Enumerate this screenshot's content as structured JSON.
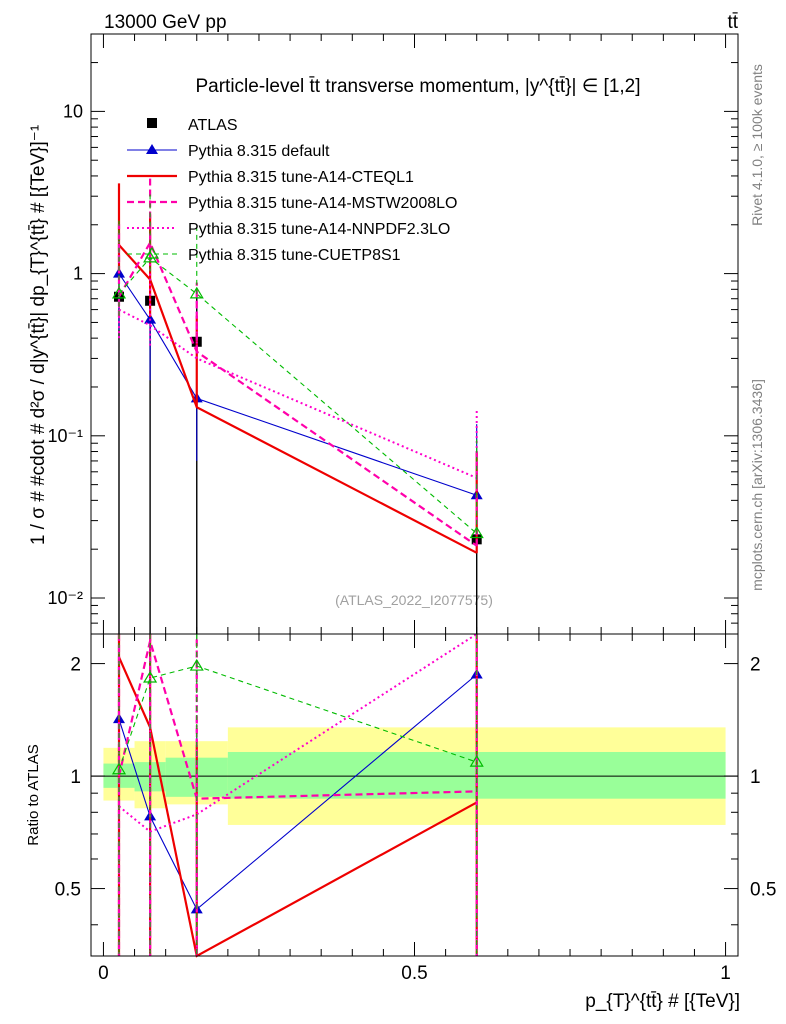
{
  "header": {
    "left": "13000 GeV pp",
    "right": "tt̄"
  },
  "side_labels": {
    "rivet": "Rivet 4.1.0, ≥ 100k events",
    "mcplots": "mcplots.cern.ch [arXiv:1306.3436]"
  },
  "chart_data": [
    {
      "type": "line",
      "panel": "main",
      "title": "Particle-level t̄t transverse momentum, |y^{tt̄}| ∈ [1,2]",
      "ylabel": "1 / σ # #cdot # d²σ / d|y^{tt̄}| dp_{T}^{tt̄} # [{TeV}]⁻¹",
      "yscale": "log",
      "ylim": [
        0.006,
        30
      ],
      "xlim": [
        -0.02,
        1.02
      ],
      "y_tick_labels": [
        "10⁻²",
        "10⁻¹",
        "1",
        "10"
      ],
      "watermark": "(ATLAS_2022_I2077575)",
      "legend_position": "top-left",
      "x": [
        0.025,
        0.075,
        0.15,
        0.6
      ],
      "series": [
        {
          "name": "ATLAS",
          "color": "#000000",
          "style": "data",
          "values": [
            0.72,
            0.68,
            0.38,
            0.023
          ],
          "err_low": [
            0.72,
            0.68,
            0.38,
            0.023
          ],
          "err_high": [
            0.72,
            0.68,
            0.38,
            0.023
          ]
        },
        {
          "name": "Pythia 8.315 default",
          "color": "#0000cc",
          "style": "solid-thin",
          "marker": "triangle",
          "values": [
            1.0,
            0.52,
            0.17,
            0.043
          ],
          "err_low": [
            0.55,
            0.3,
            0.1,
            0.02
          ],
          "err_high": [
            1.5,
            0.7,
            0.35,
            0.075
          ]
        },
        {
          "name": "Pythia 8.315 tune-A14-CTEQL1",
          "color": "#ee0000",
          "style": "solid-thick",
          "values": [
            1.5,
            0.92,
            0.15,
            0.019
          ],
          "err_low": [
            0.5,
            0.38,
            0.0001,
            0.0001
          ],
          "err_high": [
            2.1,
            1.4,
            0.4,
            0.06
          ]
        },
        {
          "name": "Pythia 8.315 tune-A14-MSTW2008LO",
          "color": "#ff00aa",
          "style": "dashed-thick",
          "values": [
            0.72,
            1.55,
            0.33,
            0.021
          ],
          "err_low": [
            0.18,
            0.38,
            0.0001,
            0.0001
          ],
          "err_high": [
            1.3,
            2.3,
            0.55,
            0.06
          ]
        },
        {
          "name": "Pythia 8.315 tune-A14-NNPDF2.3LO",
          "color": "#ff00cc",
          "style": "dotted",
          "values": [
            0.6,
            0.48,
            0.3,
            0.055
          ],
          "err_low": [
            0.2,
            0.12,
            0.0001,
            0.0001
          ],
          "err_high": [
            1.0,
            0.9,
            0.5,
            0.088
          ]
        },
        {
          "name": "Pythia 8.315 tune-CUETP8S1",
          "color": "#00bb00",
          "style": "dashed-thin",
          "marker": "triangle-open",
          "values": [
            0.75,
            1.25,
            0.75,
            0.025
          ],
          "err_low": [
            0.2,
            0.22,
            0.0001,
            0.0001
          ],
          "err_high": [
            1.4,
            1.9,
            1.15,
            0.07
          ]
        }
      ]
    },
    {
      "type": "line",
      "panel": "ratio",
      "ylabel": "Ratio to ATLAS",
      "xlabel": "p_{T}^{tt̄} # [{TeV}]",
      "ylim": [
        0.33,
        2.4
      ],
      "xlim": [
        -0.02,
        1.02
      ],
      "x_tick_labels": [
        "0",
        "0.5",
        "1"
      ],
      "y_tick_labels": [
        "0.5",
        "1",
        "2"
      ],
      "bands": {
        "bins": [
          [
            0,
            0.05
          ],
          [
            0.05,
            0.1
          ],
          [
            0.1,
            0.2
          ],
          [
            0.2,
            1.0
          ]
        ],
        "stat_low": [
          0.93,
          0.91,
          0.88,
          0.87
        ],
        "stat_high": [
          1.08,
          1.09,
          1.12,
          1.16
        ],
        "total_low": [
          0.86,
          0.82,
          0.84,
          0.74
        ],
        "total_high": [
          1.19,
          1.24,
          1.24,
          1.35
        ],
        "stat_color": "#99ff99",
        "total_color": "#ffff99"
      },
      "x": [
        0.025,
        0.075,
        0.15,
        0.6
      ],
      "series": [
        {
          "name": "Pythia 8.315 default",
          "color": "#0000cc",
          "style": "solid-thin",
          "marker": "triangle",
          "values": [
            1.42,
            0.78,
            0.44,
            1.87
          ]
        },
        {
          "name": "Pythia 8.315 tune-A14-CTEQL1",
          "color": "#ee0000",
          "style": "solid-thick",
          "values": [
            2.08,
            1.35,
            0.33,
            0.85
          ]
        },
        {
          "name": "Pythia 8.315 tune-A14-MSTW2008LO",
          "color": "#ff00aa",
          "style": "dashed-thick",
          "values": [
            1.0,
            2.3,
            0.87,
            0.91
          ]
        },
        {
          "name": "Pythia 8.315 tune-A14-NNPDF2.3LO",
          "color": "#ff00cc",
          "style": "dotted",
          "values": [
            0.83,
            0.71,
            0.79,
            2.4
          ]
        },
        {
          "name": "Pythia 8.315 tune-CUETP8S1",
          "color": "#00bb00",
          "style": "dashed-thin",
          "marker": "triangle-open",
          "values": [
            1.04,
            1.83,
            1.97,
            1.09
          ]
        }
      ]
    }
  ]
}
